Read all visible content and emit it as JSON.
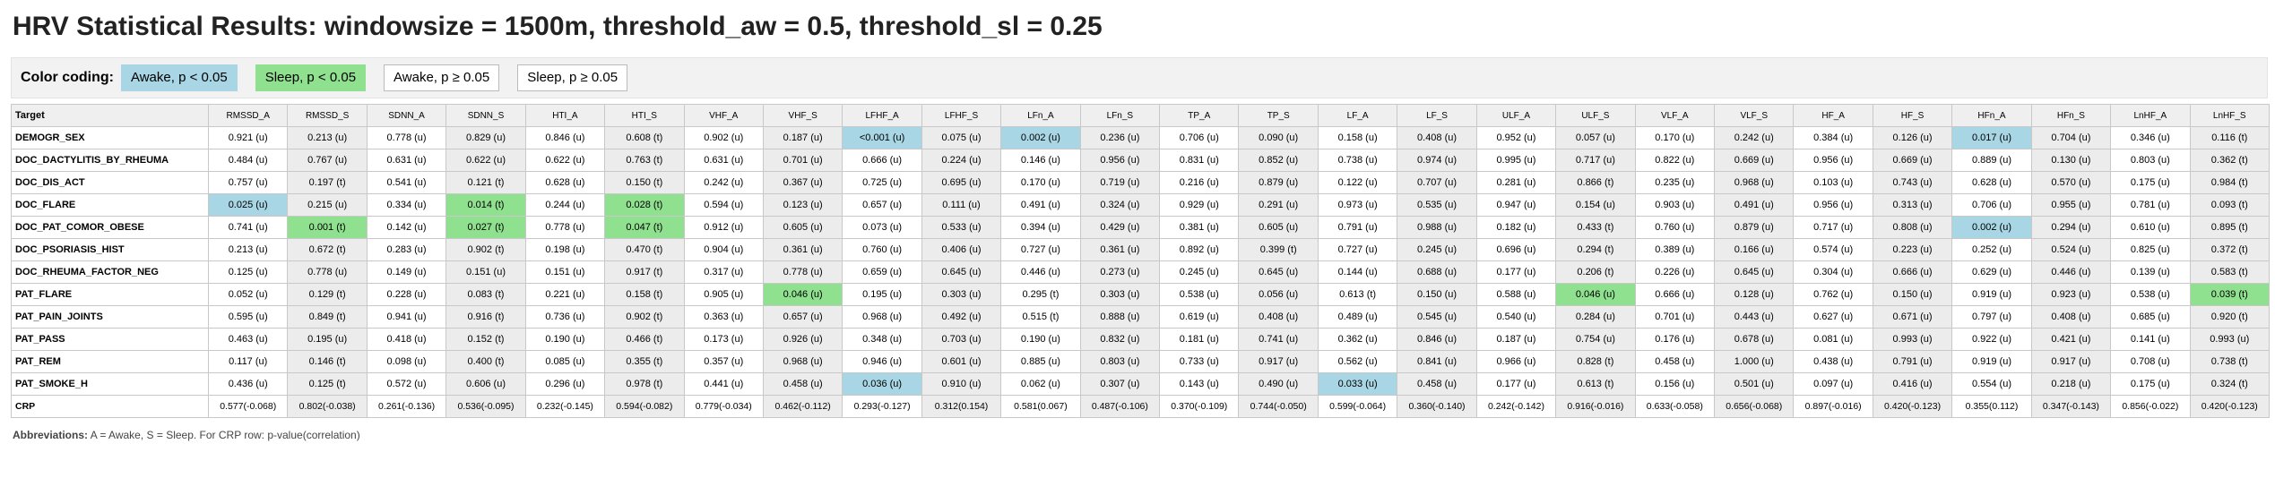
{
  "title": "HRV Statistical Results: windowsize = 1500m, threshold_aw = 0.5, threshold_sl = 0.25",
  "legend": {
    "label": "Color coding:",
    "items": [
      {
        "text": "Awake, p < 0.05",
        "kind": "aw",
        "color": "#a9d6e5"
      },
      {
        "text": "Sleep, p < 0.05",
        "kind": "sl",
        "color": "#8fe08f"
      },
      {
        "text": "Awake, p ≥ 0.05",
        "kind": "ns-aw",
        "color": "#ffffff"
      },
      {
        "text": "Sleep, p ≥ 0.05",
        "kind": "ns-sl",
        "color": "#ffffff"
      }
    ]
  },
  "table": {
    "target_header": "Target",
    "columns": [
      "RMSSD_A",
      "RMSSD_S",
      "SDNN_A",
      "SDNN_S",
      "HTI_A",
      "HTI_S",
      "VHF_A",
      "VHF_S",
      "LFHF_A",
      "LFHF_S",
      "LFn_A",
      "LFn_S",
      "TP_A",
      "TP_S",
      "LF_A",
      "LF_S",
      "ULF_A",
      "ULF_S",
      "VLF_A",
      "VLF_S",
      "HF_A",
      "HF_S",
      "HFn_A",
      "HFn_S",
      "LnHF_A",
      "LnHF_S"
    ],
    "rows": [
      {
        "target": "DEMOGR_SEX",
        "cells": [
          "0.921 (u)",
          "0.213 (u)",
          "0.778 (u)",
          "0.829 (u)",
          "0.846 (u)",
          "0.608 (t)",
          "0.902 (u)",
          "0.187 (u)",
          "<0.001 (u)",
          "0.075 (u)",
          "0.002 (u)",
          "0.236 (u)",
          "0.706 (u)",
          "0.090 (u)",
          "0.158 (u)",
          "0.408 (u)",
          "0.952 (u)",
          "0.057 (u)",
          "0.170 (u)",
          "0.242 (u)",
          "0.384 (u)",
          "0.126 (u)",
          "0.017 (u)",
          "0.704 (u)",
          "0.346 (u)",
          "0.116 (t)"
        ]
      },
      {
        "target": "DOC_DACTYLITIS_BY_RHEUMA",
        "cells": [
          "0.484 (u)",
          "0.767 (u)",
          "0.631 (u)",
          "0.622 (u)",
          "0.622 (u)",
          "0.763 (t)",
          "0.631 (u)",
          "0.701 (u)",
          "0.666 (u)",
          "0.224 (u)",
          "0.146 (u)",
          "0.956 (u)",
          "0.831 (u)",
          "0.852 (u)",
          "0.738 (u)",
          "0.974 (u)",
          "0.995 (u)",
          "0.717 (u)",
          "0.822 (u)",
          "0.669 (u)",
          "0.956 (u)",
          "0.669 (u)",
          "0.889 (u)",
          "0.130 (u)",
          "0.803 (u)",
          "0.362 (t)"
        ]
      },
      {
        "target": "DOC_DIS_ACT",
        "cells": [
          "0.757 (u)",
          "0.197 (t)",
          "0.541 (u)",
          "0.121 (t)",
          "0.628 (u)",
          "0.150 (t)",
          "0.242 (u)",
          "0.367 (u)",
          "0.725 (u)",
          "0.695 (u)",
          "0.170 (u)",
          "0.719 (u)",
          "0.216 (u)",
          "0.879 (u)",
          "0.122 (u)",
          "0.707 (u)",
          "0.281 (u)",
          "0.866 (t)",
          "0.235 (u)",
          "0.968 (u)",
          "0.103 (u)",
          "0.743 (u)",
          "0.628 (u)",
          "0.570 (u)",
          "0.175 (u)",
          "0.984 (t)"
        ]
      },
      {
        "target": "DOC_FLARE",
        "cells": [
          "0.025 (u)",
          "0.215 (u)",
          "0.334 (u)",
          "0.014 (t)",
          "0.244 (u)",
          "0.028 (t)",
          "0.594 (u)",
          "0.123 (u)",
          "0.657 (u)",
          "0.111 (u)",
          "0.491 (u)",
          "0.324 (u)",
          "0.929 (u)",
          "0.291 (u)",
          "0.973 (u)",
          "0.535 (u)",
          "0.947 (u)",
          "0.154 (u)",
          "0.903 (u)",
          "0.491 (u)",
          "0.956 (u)",
          "0.313 (u)",
          "0.706 (u)",
          "0.955 (u)",
          "0.781 (u)",
          "0.093 (t)"
        ]
      },
      {
        "target": "DOC_PAT_COMOR_OBESE",
        "cells": [
          "0.741 (u)",
          "0.001 (t)",
          "0.142 (u)",
          "0.027 (t)",
          "0.778 (u)",
          "0.047 (t)",
          "0.912 (u)",
          "0.605 (u)",
          "0.073 (u)",
          "0.533 (u)",
          "0.394 (u)",
          "0.429 (u)",
          "0.381 (u)",
          "0.605 (u)",
          "0.791 (u)",
          "0.988 (u)",
          "0.182 (u)",
          "0.433 (t)",
          "0.760 (u)",
          "0.879 (u)",
          "0.717 (u)",
          "0.808 (u)",
          "0.002 (u)",
          "0.294 (u)",
          "0.610 (u)",
          "0.895 (t)"
        ]
      },
      {
        "target": "DOC_PSORIASIS_HIST",
        "cells": [
          "0.213 (u)",
          "0.672 (t)",
          "0.283 (u)",
          "0.902 (t)",
          "0.198 (u)",
          "0.470 (t)",
          "0.904 (u)",
          "0.361 (u)",
          "0.760 (u)",
          "0.406 (u)",
          "0.727 (u)",
          "0.361 (u)",
          "0.892 (u)",
          "0.399 (t)",
          "0.727 (u)",
          "0.245 (u)",
          "0.696 (u)",
          "0.294 (t)",
          "0.389 (u)",
          "0.166 (u)",
          "0.574 (u)",
          "0.223 (u)",
          "0.252 (u)",
          "0.524 (u)",
          "0.825 (u)",
          "0.372 (t)"
        ]
      },
      {
        "target": "DOC_RHEUMA_FACTOR_NEG",
        "cells": [
          "0.125 (u)",
          "0.778 (u)",
          "0.149 (u)",
          "0.151 (u)",
          "0.151 (u)",
          "0.917 (t)",
          "0.317 (u)",
          "0.778 (u)",
          "0.659 (u)",
          "0.645 (u)",
          "0.446 (u)",
          "0.273 (u)",
          "0.245 (u)",
          "0.645 (u)",
          "0.144 (u)",
          "0.688 (u)",
          "0.177 (u)",
          "0.206 (t)",
          "0.226 (u)",
          "0.645 (u)",
          "0.304 (u)",
          "0.666 (u)",
          "0.629 (u)",
          "0.446 (u)",
          "0.139 (u)",
          "0.583 (t)"
        ]
      },
      {
        "target": "PAT_FLARE",
        "cells": [
          "0.052 (u)",
          "0.129 (t)",
          "0.228 (u)",
          "0.083 (t)",
          "0.221 (u)",
          "0.158 (t)",
          "0.905 (u)",
          "0.046 (u)",
          "0.195 (u)",
          "0.303 (u)",
          "0.295 (t)",
          "0.303 (u)",
          "0.538 (u)",
          "0.056 (u)",
          "0.613 (t)",
          "0.150 (u)",
          "0.588 (u)",
          "0.046 (u)",
          "0.666 (u)",
          "0.128 (u)",
          "0.762 (u)",
          "0.150 (u)",
          "0.919 (u)",
          "0.923 (u)",
          "0.538 (u)",
          "0.039 (t)"
        ]
      },
      {
        "target": "PAT_PAIN_JOINTS",
        "cells": [
          "0.595 (u)",
          "0.849 (t)",
          "0.941 (u)",
          "0.916 (t)",
          "0.736 (u)",
          "0.902 (t)",
          "0.363 (u)",
          "0.657 (u)",
          "0.968 (u)",
          "0.492 (u)",
          "0.515 (t)",
          "0.888 (u)",
          "0.619 (u)",
          "0.408 (u)",
          "0.489 (u)",
          "0.545 (u)",
          "0.540 (u)",
          "0.284 (u)",
          "0.701 (u)",
          "0.443 (u)",
          "0.627 (u)",
          "0.671 (u)",
          "0.797 (u)",
          "0.408 (u)",
          "0.685 (u)",
          "0.920 (t)"
        ]
      },
      {
        "target": "PAT_PASS",
        "cells": [
          "0.463 (u)",
          "0.195 (u)",
          "0.418 (u)",
          "0.152 (t)",
          "0.190 (u)",
          "0.466 (t)",
          "0.173 (u)",
          "0.926 (u)",
          "0.348 (u)",
          "0.703 (u)",
          "0.190 (u)",
          "0.832 (u)",
          "0.181 (u)",
          "0.741 (u)",
          "0.362 (u)",
          "0.846 (u)",
          "0.187 (u)",
          "0.754 (u)",
          "0.176 (u)",
          "0.678 (u)",
          "0.081 (u)",
          "0.993 (u)",
          "0.922 (u)",
          "0.421 (u)",
          "0.141 (u)",
          "0.993 (u)"
        ]
      },
      {
        "target": "PAT_REM",
        "cells": [
          "0.117 (u)",
          "0.146 (t)",
          "0.098 (u)",
          "0.400 (t)",
          "0.085 (u)",
          "0.355 (t)",
          "0.357 (u)",
          "0.968 (u)",
          "0.946 (u)",
          "0.601 (u)",
          "0.885 (u)",
          "0.803 (u)",
          "0.733 (u)",
          "0.917 (u)",
          "0.562 (u)",
          "0.841 (u)",
          "0.966 (u)",
          "0.828 (t)",
          "0.458 (u)",
          "1.000 (u)",
          "0.438 (u)",
          "0.791 (u)",
          "0.919 (u)",
          "0.917 (u)",
          "0.708 (u)",
          "0.738 (t)"
        ]
      },
      {
        "target": "PAT_SMOKE_H",
        "cells": [
          "0.436 (u)",
          "0.125 (t)",
          "0.572 (u)",
          "0.606 (u)",
          "0.296 (u)",
          "0.978 (t)",
          "0.441 (u)",
          "0.458 (u)",
          "0.036 (u)",
          "0.910 (u)",
          "0.062 (u)",
          "0.307 (u)",
          "0.143 (u)",
          "0.490 (u)",
          "0.033 (u)",
          "0.458 (u)",
          "0.177 (u)",
          "0.613 (t)",
          "0.156 (u)",
          "0.501 (u)",
          "0.097 (u)",
          "0.416 (u)",
          "0.554 (u)",
          "0.218 (u)",
          "0.175 (u)",
          "0.324 (t)"
        ]
      },
      {
        "target": "CRP",
        "cells": [
          "0.577(-0.068)",
          "0.802(-0.038)",
          "0.261(-0.136)",
          "0.536(-0.095)",
          "0.232(-0.145)",
          "0.594(-0.082)",
          "0.779(-0.034)",
          "0.462(-0.112)",
          "0.293(-0.127)",
          "0.312(0.154)",
          "0.581(0.067)",
          "0.487(-0.106)",
          "0.370(-0.109)",
          "0.744(-0.050)",
          "0.599(-0.064)",
          "0.360(-0.140)",
          "0.242(-0.142)",
          "0.916(-0.016)",
          "0.633(-0.058)",
          "0.656(-0.068)",
          "0.897(-0.016)",
          "0.420(-0.123)",
          "0.355(0.112)",
          "0.347(-0.143)",
          "0.856(-0.022)",
          "0.420(-0.123)"
        ]
      }
    ],
    "highlights": [
      {
        "row": 0,
        "col": 8,
        "kind": "aw"
      },
      {
        "row": 0,
        "col": 10,
        "kind": "aw"
      },
      {
        "row": 0,
        "col": 22,
        "kind": "aw"
      },
      {
        "row": 3,
        "col": 0,
        "kind": "aw"
      },
      {
        "row": 3,
        "col": 3,
        "kind": "sl"
      },
      {
        "row": 3,
        "col": 5,
        "kind": "sl"
      },
      {
        "row": 4,
        "col": 1,
        "kind": "sl"
      },
      {
        "row": 4,
        "col": 3,
        "kind": "sl"
      },
      {
        "row": 4,
        "col": 5,
        "kind": "sl"
      },
      {
        "row": 4,
        "col": 22,
        "kind": "aw"
      },
      {
        "row": 7,
        "col": 7,
        "kind": "sl"
      },
      {
        "row": 7,
        "col": 17,
        "kind": "sl"
      },
      {
        "row": 7,
        "col": 25,
        "kind": "sl"
      },
      {
        "row": 11,
        "col": 8,
        "kind": "aw"
      },
      {
        "row": 11,
        "col": 14,
        "kind": "aw"
      }
    ]
  },
  "footer": {
    "abbr_label": "Abbreviations:",
    "abbr_text": " A = Awake, S = Sleep. For CRP row: p-value(correlation)"
  }
}
